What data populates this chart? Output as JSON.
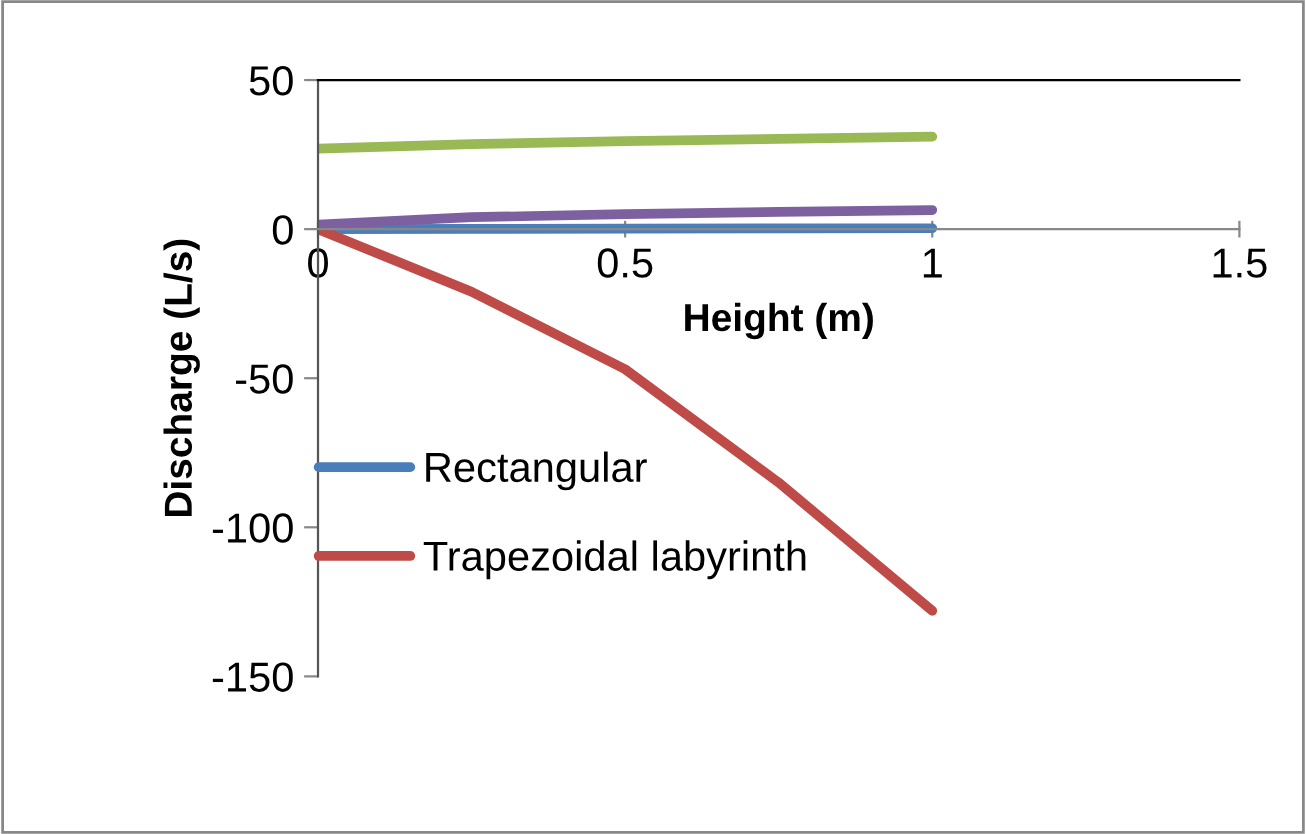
{
  "chart_data": {
    "type": "line",
    "xlabel": "Height (m)",
    "ylabel": "Discharge (L/s)",
    "x": [
      0,
      0.25,
      0.5,
      0.75,
      1
    ],
    "series": [
      {
        "name": "Rectangular",
        "color": "#4a7ebb",
        "values": [
          0,
          0.1,
          0.2,
          0.25,
          0.3
        ]
      },
      {
        "name": "Trapezoidal labyrinth",
        "color": "#be4b48",
        "values": [
          0,
          -21,
          -47,
          -85,
          -128
        ]
      },
      {
        "color": "#98b954",
        "values": [
          27,
          28.5,
          29.5,
          30.3,
          31
        ]
      },
      {
        "color": "#7d60a0",
        "values": [
          1.5,
          4,
          5,
          5.8,
          6.4
        ]
      }
    ],
    "xlim": [
      0,
      1.5
    ],
    "ylim": [
      -150,
      50
    ],
    "xticks": [
      0,
      0.5,
      1,
      1.5
    ],
    "yticks": [
      -150,
      -100,
      -50,
      0,
      50
    ],
    "grid": false,
    "legend": "left",
    "marker": "none",
    "line_style": "solid"
  }
}
